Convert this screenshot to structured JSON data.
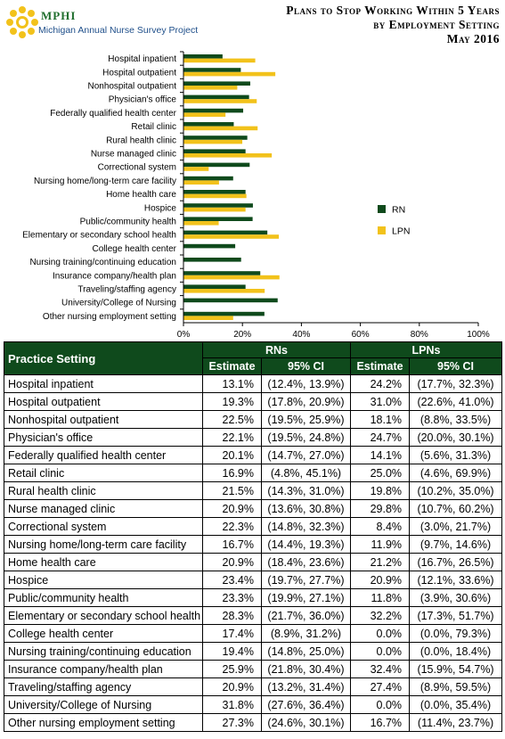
{
  "header": {
    "logo_text": "MPHI",
    "logo_subtitle": "Michigan Annual Nurse Survey Project",
    "title_line1": "Plans to Stop Working Within 5 Years",
    "title_line2": "by Employment Setting",
    "title_line3": "May 2016"
  },
  "chart_data": {
    "type": "bar",
    "orientation": "horizontal",
    "categories": [
      "Hospital inpatient",
      "Hospital outpatient",
      "Nonhospital outpatient",
      "Physician's office",
      "Federally qualified health center",
      "Retail clinic",
      "Rural health clinic",
      "Nurse managed clinic",
      "Correctional system",
      "Nursing home/long-term care facility",
      "Home health care",
      "Hospice",
      "Public/community health",
      "Elementary or secondary school health",
      "College health center",
      "Nursing training/continuing education",
      "Insurance company/health plan",
      "Traveling/staffing agency",
      "University/College of Nursing",
      "Other nursing employment setting"
    ],
    "series": [
      {
        "name": "RN",
        "color": "#0f4a1c",
        "values": [
          13.1,
          19.3,
          22.5,
          22.1,
          20.1,
          16.9,
          21.5,
          20.9,
          22.3,
          16.7,
          20.9,
          23.4,
          23.3,
          28.3,
          17.4,
          19.4,
          25.9,
          20.9,
          31.8,
          27.3
        ]
      },
      {
        "name": "LPN",
        "color": "#f2c21b",
        "values": [
          24.2,
          31.0,
          18.1,
          24.7,
          14.1,
          25.0,
          19.8,
          29.8,
          8.4,
          11.9,
          21.2,
          20.9,
          11.8,
          32.2,
          0.0,
          0.0,
          32.4,
          27.4,
          0.0,
          16.7
        ]
      }
    ],
    "xlim": [
      0,
      100
    ],
    "xticks": [
      "0%",
      "20%",
      "40%",
      "60%",
      "80%",
      "100%"
    ],
    "legend_position": "right"
  },
  "table": {
    "col_practice": "Practice Setting",
    "group_rn": "RNs",
    "group_lpn": "LPNs",
    "col_estimate": "Estimate",
    "col_ci": "95% CI",
    "rows": [
      {
        "setting": "Hospital inpatient",
        "rn_est": "13.1%",
        "rn_ci": "(12.4%, 13.9%)",
        "lpn_est": "24.2%",
        "lpn_ci": "(17.7%, 32.3%)"
      },
      {
        "setting": "Hospital outpatient",
        "rn_est": "19.3%",
        "rn_ci": "(17.8%, 20.9%)",
        "lpn_est": "31.0%",
        "lpn_ci": "(22.6%, 41.0%)"
      },
      {
        "setting": "Nonhospital outpatient",
        "rn_est": "22.5%",
        "rn_ci": "(19.5%, 25.9%)",
        "lpn_est": "18.1%",
        "lpn_ci": "(8.8%, 33.5%)"
      },
      {
        "setting": "Physician's office",
        "rn_est": "22.1%",
        "rn_ci": "(19.5%, 24.8%)",
        "lpn_est": "24.7%",
        "lpn_ci": "(20.0%, 30.1%)"
      },
      {
        "setting": "Federally qualified health center",
        "rn_est": "20.1%",
        "rn_ci": "(14.7%, 27.0%)",
        "lpn_est": "14.1%",
        "lpn_ci": "(5.6%, 31.3%)"
      },
      {
        "setting": "Retail clinic",
        "rn_est": "16.9%",
        "rn_ci": "(4.8%, 45.1%)",
        "lpn_est": "25.0%",
        "lpn_ci": "(4.6%, 69.9%)"
      },
      {
        "setting": "Rural health clinic",
        "rn_est": "21.5%",
        "rn_ci": "(14.3%, 31.0%)",
        "lpn_est": "19.8%",
        "lpn_ci": "(10.2%, 35.0%)"
      },
      {
        "setting": "Nurse managed clinic",
        "rn_est": "20.9%",
        "rn_ci": "(13.6%, 30.8%)",
        "lpn_est": "29.8%",
        "lpn_ci": "(10.7%, 60.2%)"
      },
      {
        "setting": "Correctional system",
        "rn_est": "22.3%",
        "rn_ci": "(14.8%, 32.3%)",
        "lpn_est": "8.4%",
        "lpn_ci": "(3.0%, 21.7%)"
      },
      {
        "setting": "Nursing home/long-term care facility",
        "rn_est": "16.7%",
        "rn_ci": "(14.4%, 19.3%)",
        "lpn_est": "11.9%",
        "lpn_ci": "(9.7%, 14.6%)"
      },
      {
        "setting": "Home health care",
        "rn_est": "20.9%",
        "rn_ci": "(18.4%, 23.6%)",
        "lpn_est": "21.2%",
        "lpn_ci": "(16.7%, 26.5%)"
      },
      {
        "setting": "Hospice",
        "rn_est": "23.4%",
        "rn_ci": "(19.7%, 27.7%)",
        "lpn_est": "20.9%",
        "lpn_ci": "(12.1%, 33.6%)"
      },
      {
        "setting": "Public/community health",
        "rn_est": "23.3%",
        "rn_ci": "(19.9%, 27.1%)",
        "lpn_est": "11.8%",
        "lpn_ci": "(3.9%, 30.6%)"
      },
      {
        "setting": "Elementary or secondary school health",
        "rn_est": "28.3%",
        "rn_ci": "(21.7%, 36.0%)",
        "lpn_est": "32.2%",
        "lpn_ci": "(17.3%, 51.7%)"
      },
      {
        "setting": "College health center",
        "rn_est": "17.4%",
        "rn_ci": "(8.9%, 31.2%)",
        "lpn_est": "0.0%",
        "lpn_ci": "(0.0%, 79.3%)"
      },
      {
        "setting": "Nursing training/continuing education",
        "rn_est": "19.4%",
        "rn_ci": "(14.8%, 25.0%)",
        "lpn_est": "0.0%",
        "lpn_ci": "(0.0%, 18.4%)"
      },
      {
        "setting": "Insurance company/health plan",
        "rn_est": "25.9%",
        "rn_ci": "(21.8%, 30.4%)",
        "lpn_est": "32.4%",
        "lpn_ci": "(15.9%, 54.7%)"
      },
      {
        "setting": "Traveling/staffing agency",
        "rn_est": "20.9%",
        "rn_ci": "(13.2%, 31.4%)",
        "lpn_est": "27.4%",
        "lpn_ci": "(8.9%, 59.5%)"
      },
      {
        "setting": "University/College of Nursing",
        "rn_est": "31.8%",
        "rn_ci": "(27.6%, 36.4%)",
        "lpn_est": "0.0%",
        "lpn_ci": "(0.0%, 35.4%)"
      },
      {
        "setting": "Other nursing employment setting",
        "rn_est": "27.3%",
        "rn_ci": "(24.6%, 30.1%)",
        "lpn_est": "16.7%",
        "lpn_ci": "(11.4%, 23.7%)"
      }
    ]
  }
}
